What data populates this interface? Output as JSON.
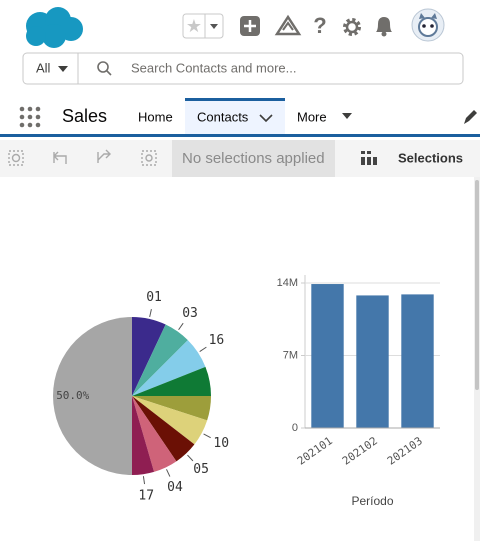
{
  "header": {
    "search_scope": "All",
    "search_placeholder": "Search Contacts and more..."
  },
  "nav": {
    "app": "Sales",
    "tabs": [
      "Home",
      "Contacts",
      "More"
    ]
  },
  "toolbar": {
    "status": "No selections applied",
    "selections": "Selections"
  },
  "chart_data": [
    {
      "type": "pie",
      "categories": [
        "01",
        "03",
        "16",
        null,
        null,
        "10",
        "05",
        "04",
        "17",
        null
      ],
      "values": [
        7,
        5.5,
        6.5,
        6,
        5,
        5.5,
        5,
        5,
        4.5,
        50
      ],
      "value_labels": [
        null,
        null,
        null,
        null,
        null,
        null,
        null,
        null,
        null,
        "50.0%"
      ],
      "colors": [
        "#3b2a8c",
        "#4fae9f",
        "#84cdea",
        "#0f7a35",
        "#9d9e3b",
        "#ddd27a",
        "#6b1005",
        "#cf6379",
        "#8f1e52",
        "#a6a6a6"
      ]
    },
    {
      "type": "bar",
      "categories": [
        "202101",
        "202102",
        "202103"
      ],
      "values": [
        13900000,
        12800000,
        12900000
      ],
      "color": "#4477aa",
      "ylim": [
        0,
        14000000
      ],
      "yticks": [
        0,
        {
          "value": 7000000,
          "label": "7M"
        },
        {
          "value": 14000000,
          "label": "14M"
        }
      ],
      "xlabel": "Período",
      "grid": true
    }
  ]
}
